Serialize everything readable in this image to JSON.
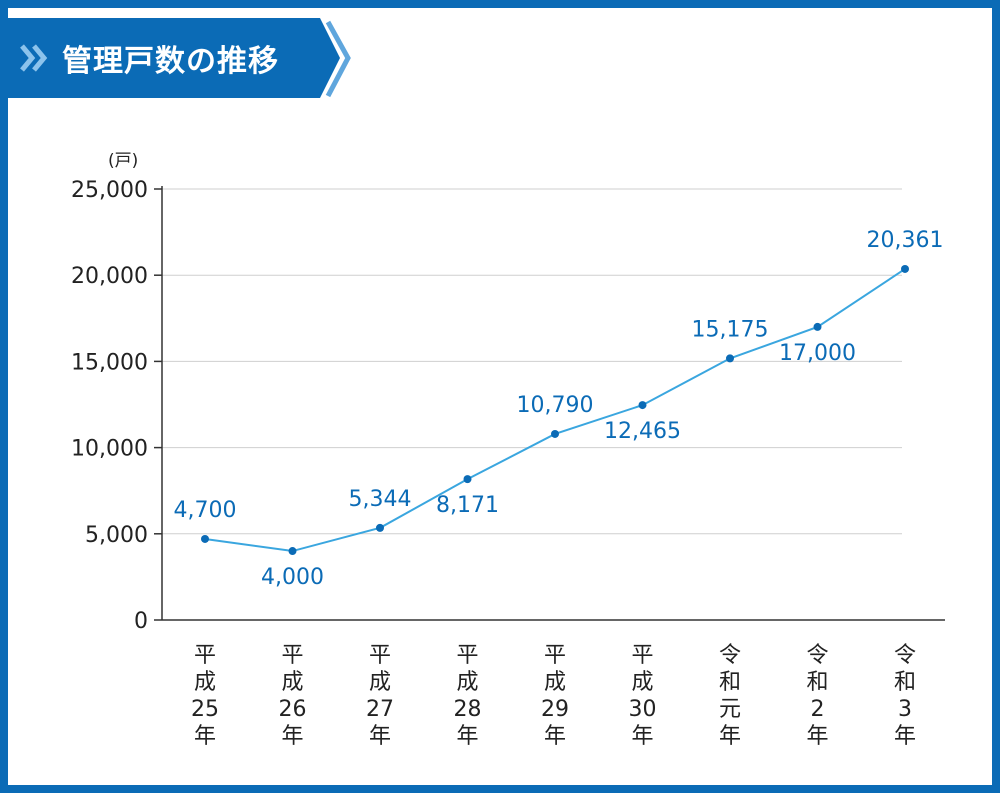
{
  "header": {
    "title": "管理戸数の推移",
    "accent_color": "#0b6bb6",
    "chevron_color": "#5fa6dd",
    "icon": "double-chevron-right-icon"
  },
  "chart_data": {
    "type": "line",
    "title": "",
    "ylabel": "(戸)",
    "xlabel": "",
    "ylim": [
      0,
      25000
    ],
    "yticks": [
      0,
      5000,
      10000,
      15000,
      20000,
      25000
    ],
    "ytick_labels": [
      "0",
      "5,000",
      "10,000",
      "15,000",
      "20,000",
      "25,000"
    ],
    "grid": true,
    "line_color": "#3aa6df",
    "label_color": "#0b6bb6",
    "categories": [
      [
        "平",
        "成",
        "25",
        "年"
      ],
      [
        "平",
        "成",
        "26",
        "年"
      ],
      [
        "平",
        "成",
        "27",
        "年"
      ],
      [
        "平",
        "成",
        "28",
        "年"
      ],
      [
        "平",
        "成",
        "29",
        "年"
      ],
      [
        "平",
        "成",
        "30",
        "年"
      ],
      [
        "令",
        "和",
        "元",
        "年"
      ],
      [
        "令",
        "和",
        "2",
        "年"
      ],
      [
        "令",
        "和",
        "3",
        "年"
      ]
    ],
    "values": [
      4700,
      4000,
      5344,
      8171,
      10790,
      12465,
      15175,
      17000,
      20361
    ],
    "data_labels": [
      "4,700",
      "4,000",
      "5,344",
      "8,171",
      "10,790",
      "12,465",
      "15,175",
      "17,000",
      "20,361"
    ],
    "label_positions": [
      "above",
      "below",
      "above",
      "below",
      "above",
      "below",
      "above",
      "below",
      "above"
    ]
  }
}
